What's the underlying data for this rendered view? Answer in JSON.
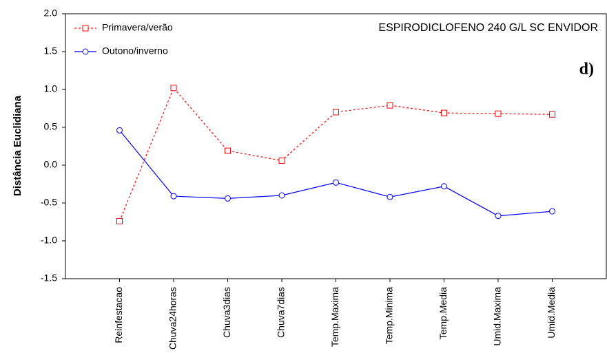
{
  "chart_data": {
    "type": "line",
    "title": "ESPIRODICLOFENO 240 G/L SC ENVIDOR",
    "annotation": "d)",
    "y_label": "Distância Euclidiana",
    "categories": [
      "Reinfestacao",
      "Chuva24horas",
      "Chuva3dias",
      "Chuva7dias",
      "Temp.Maxima",
      "Temp.Minima",
      "Temp.Media",
      "Umid.Maxima",
      "Umid.Media"
    ],
    "series": [
      {
        "name": "Primavera/verão",
        "color": "#ff0000",
        "values": [
          -0.74,
          1.02,
          0.19,
          0.06,
          0.7,
          0.79,
          0.69,
          0.68,
          0.67
        ]
      },
      {
        "name": "Outono/inverno",
        "color": "#0000ff",
        "values": [
          0.46,
          -0.41,
          -0.44,
          -0.4,
          -0.23,
          -0.42,
          -0.28,
          -0.67,
          -0.61
        ]
      }
    ],
    "ylim": [
      -1.5,
      2.0
    ],
    "yticks": [
      {
        "value": -1.5,
        "label": "-1.5"
      },
      {
        "value": -1,
        "label": "-1.0"
      },
      {
        "value": -0.5,
        "label": "-0.5"
      },
      {
        "value": 0,
        "label": "0.0"
      },
      {
        "value": 0.5,
        "label": "0.5"
      },
      {
        "value": 1,
        "label": "1.0"
      },
      {
        "value": 1.5,
        "label": "1.5"
      },
      {
        "value": 2,
        "label": "2.0"
      }
    ],
    "legend": "upper left"
  }
}
